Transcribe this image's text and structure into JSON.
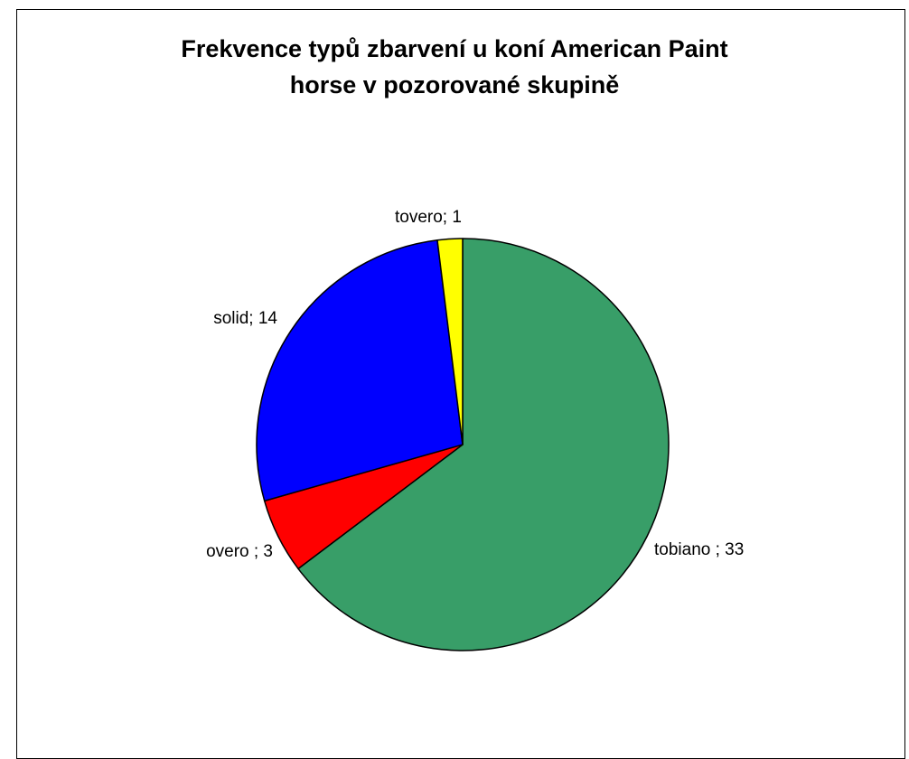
{
  "chart_data": {
    "type": "pie",
    "title_lines": [
      "Frekvence typů zbarvení u koní American Paint",
      "horse v pozorované skupině"
    ],
    "slices": [
      {
        "label": "tobiano ; 33",
        "category": "tobiano",
        "value": 33,
        "color": "#389E68"
      },
      {
        "label": "overo ; 3",
        "category": "overo",
        "value": 3,
        "color": "#FF0000"
      },
      {
        "label": "solid; 14",
        "category": "solid",
        "value": 14,
        "color": "#0000FF"
      },
      {
        "label": "tovero; 1",
        "category": "tovero",
        "value": 1,
        "color": "#FFFF00"
      }
    ],
    "start": "12 o'clock",
    "direction": "clockwise",
    "legend": "none",
    "data_labels": "outside"
  }
}
